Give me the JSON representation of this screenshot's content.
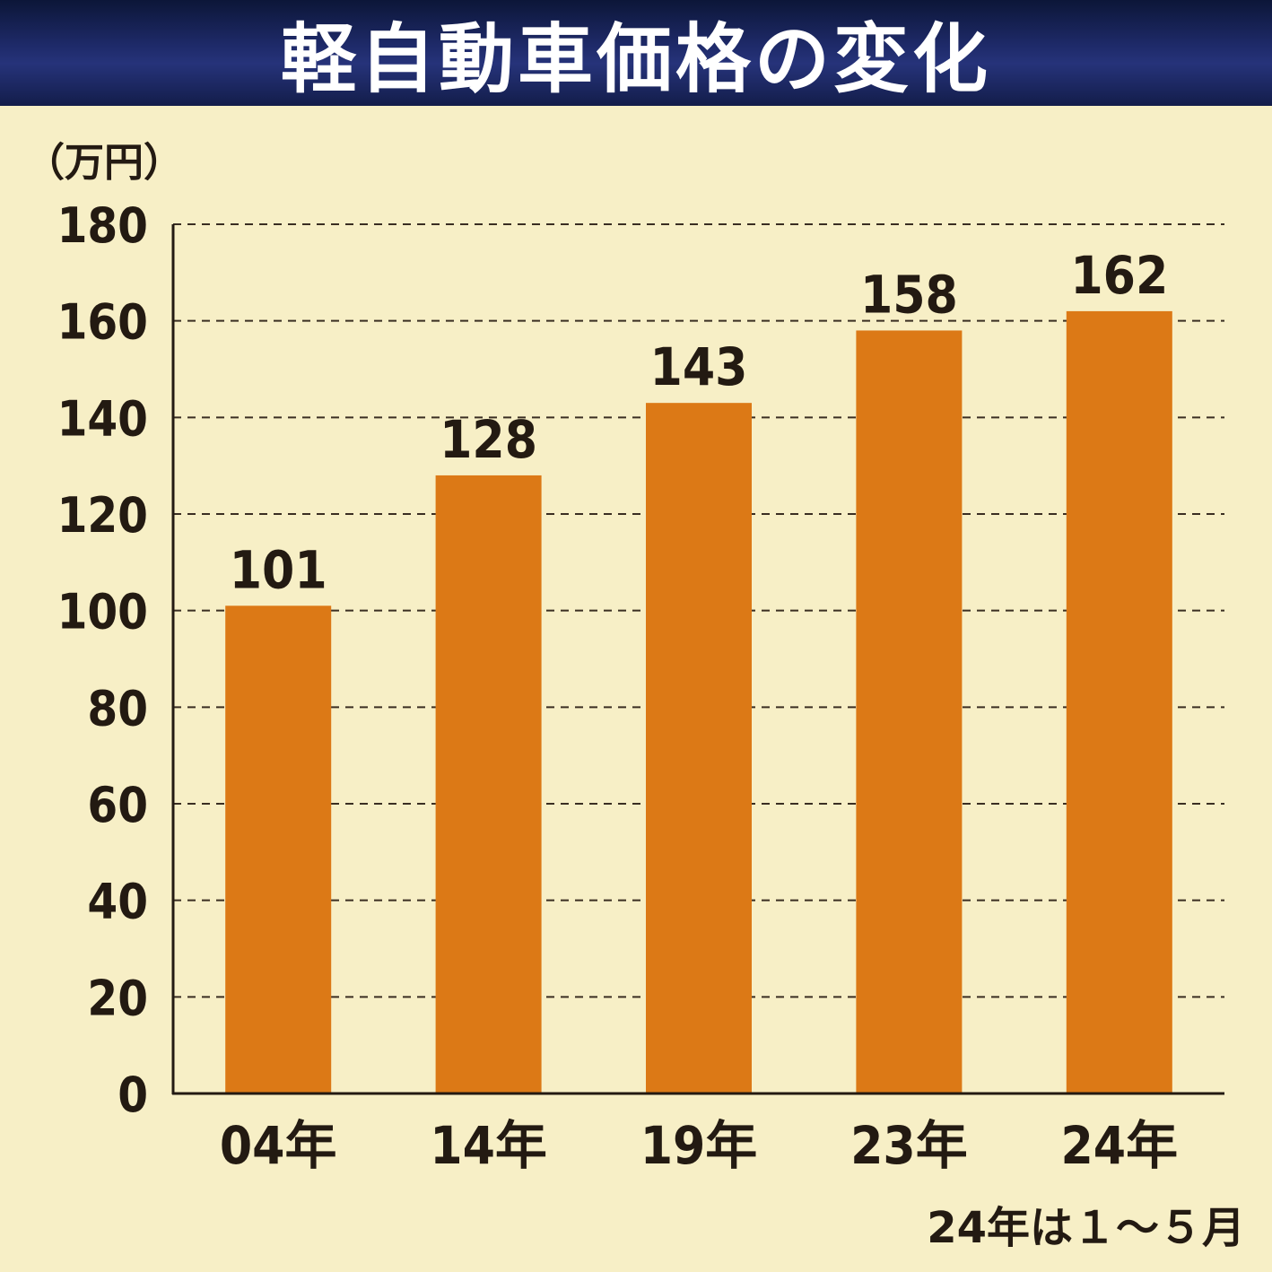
{
  "title": "軽自動車価格の変化",
  "unit_label": "（万円）",
  "footnote": "24年は１～５月",
  "colors": {
    "background": "#f7efc6",
    "title_bg": "#1a2560",
    "bar": "#dc7916",
    "text": "#231a12"
  },
  "chart_data": {
    "type": "bar",
    "title": "軽自動車価格の変化",
    "ylabel": "（万円）",
    "xlabel": "",
    "categories": [
      "04年",
      "14年",
      "19年",
      "23年",
      "24年"
    ],
    "values": [
      101,
      128,
      143,
      158,
      162
    ],
    "ylim": [
      0,
      180
    ],
    "yticks": [
      0,
      20,
      40,
      60,
      80,
      100,
      120,
      140,
      160,
      180
    ],
    "grid": "dashed horizontal",
    "data_labels": true
  }
}
